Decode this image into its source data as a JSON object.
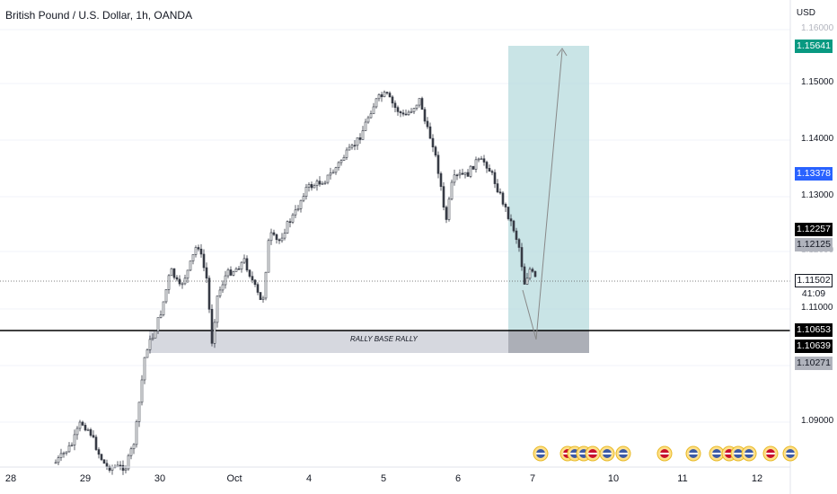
{
  "header": {
    "symbol_title": "British Pound / U.S. Dollar, 1h, OANDA"
  },
  "price_axis": {
    "currency": "USD",
    "ticks": [
      "1.16000",
      "1.15000",
      "1.14000",
      "1.13000",
      "1.12000",
      "1.11000",
      "1.09000"
    ]
  },
  "badges": {
    "target": "1.15641",
    "blue": "1.13378",
    "black_upper": "1.12257",
    "gray_upper": "1.12125",
    "current_price": "1.11502",
    "countdown": "41:09",
    "black_line": "1.10653",
    "black_lower": "1.10639",
    "gray_lower": "1.10271"
  },
  "annotations": {
    "zone_label": "RALLY BASE RALLY"
  },
  "time_axis": {
    "labels": [
      "28",
      "29",
      "30",
      "Oct",
      "4",
      "5",
      "6",
      "7",
      "10",
      "11",
      "12"
    ]
  },
  "colors": {
    "up": "#363a45",
    "down": "#363a45",
    "target_zone": "#b2d8dc",
    "base_zone": "#c8cad0",
    "blue_badge": "#2962ff",
    "green_badge": "#089981",
    "black_badge": "#000000",
    "gray_badge": "#b0b3bc"
  },
  "event_icons": [
    "us-flag-icon",
    "uk-flag-icon",
    "us-flag-icon",
    "us-flag-icon",
    "uk-flag-icon",
    "us-flag-icon",
    "us-flag-icon",
    "uk-flag-icon",
    "us-flag-icon",
    "us-flag-icon",
    "uk-flag-icon",
    "us-flag-icon",
    "us-flag-icon",
    "uk-flag-icon"
  ]
}
